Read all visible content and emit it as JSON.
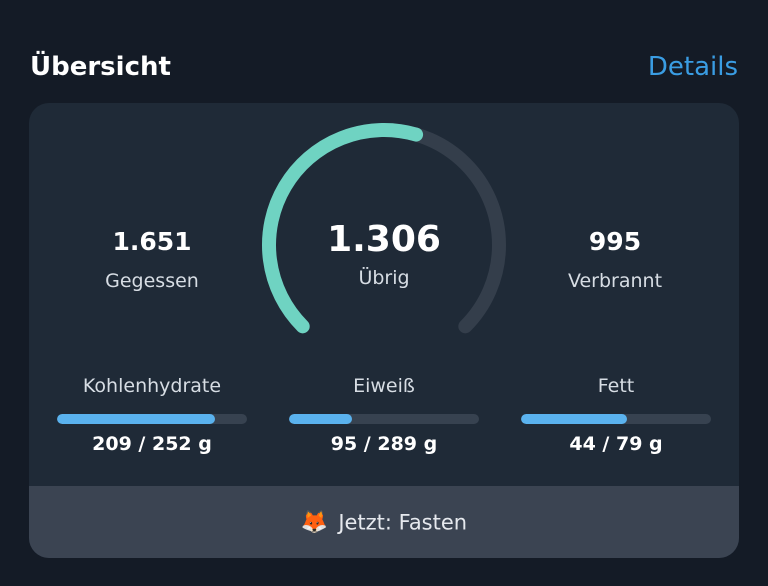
{
  "header": {
    "title": "Übersicht",
    "details_link": "Details"
  },
  "summary": {
    "eaten": {
      "value": "1.651",
      "label": "Gegessen"
    },
    "remaining": {
      "value": "1.306",
      "label": "Übrig"
    },
    "burned": {
      "value": "995",
      "label": "Verbrannt"
    },
    "gauge_progress": 0.56,
    "gauge_colors": {
      "progress": "#6fd3c2",
      "track": "#343e4b"
    }
  },
  "macros": [
    {
      "name": "Kohlenhydrate",
      "value": "209 / 252 g",
      "progress": 0.83
    },
    {
      "name": "Eiweiß",
      "value": "95 / 289 g",
      "progress": 0.33
    },
    {
      "name": "Fett",
      "value": "44 / 79 g",
      "progress": 0.56
    }
  ],
  "footer": {
    "emoji": "🦊",
    "status": "Jetzt: Fasten"
  },
  "colors": {
    "accent": "#3a9de3",
    "bar_fill": "#5ab2ee",
    "bar_track": "#374250",
    "card": "#1f2a37",
    "footer": "#3b4452"
  }
}
